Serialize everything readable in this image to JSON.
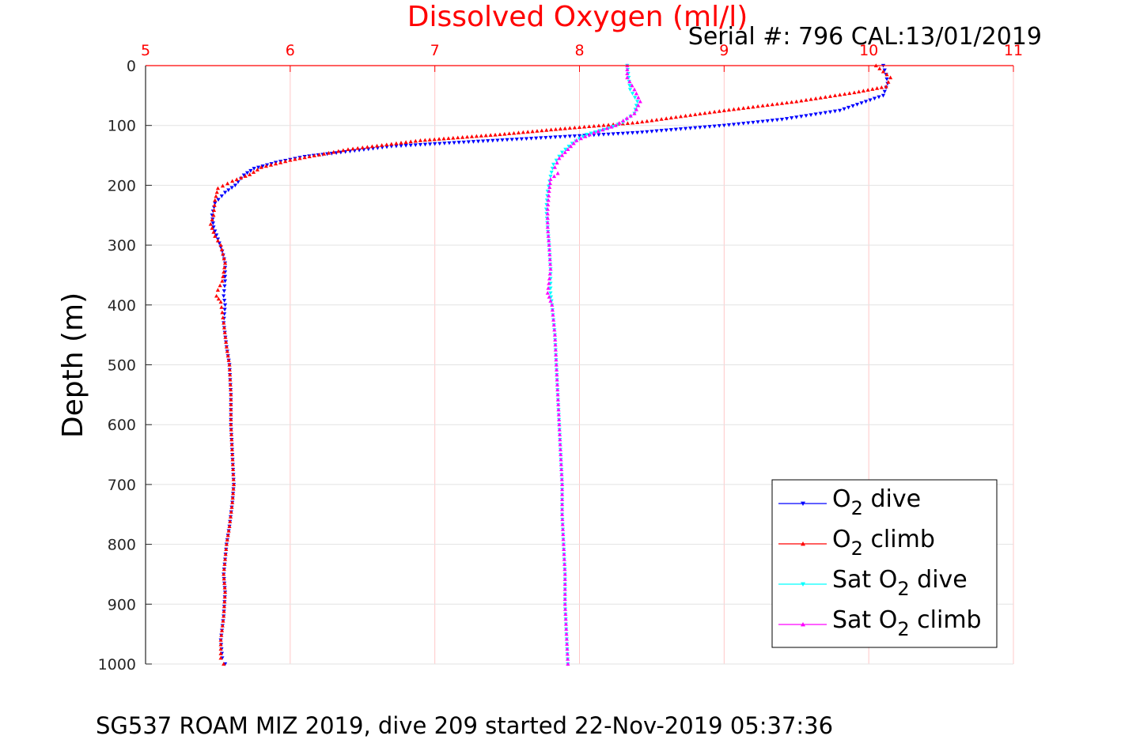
{
  "chart_data": {
    "type": "scatter",
    "title": "Dissolved Oxygen (ml/l)",
    "serial_label": "Serial #: 796  CAL:13/01/2019",
    "ylabel": "Depth (m)",
    "caption": "SG537 ROAM MIZ 2019, dive 209 started 22-Nov-2019 05:37:36",
    "xlim": [
      5,
      11
    ],
    "ylim": [
      0,
      1000
    ],
    "y_reversed": true,
    "x_axis_position": "top",
    "x_ticks": [
      "5",
      "6",
      "7",
      "8",
      "9",
      "10",
      "11"
    ],
    "y_ticks": [
      "0",
      "100",
      "200",
      "300",
      "400",
      "500",
      "600",
      "700",
      "800",
      "900",
      "1000"
    ],
    "grid": true,
    "legend_placement": "bottom-right",
    "colors": {
      "axis_accent": "#ff0000",
      "grid": "#ffc8c8"
    },
    "series": [
      {
        "name": "O2 dive",
        "label_main": "O",
        "label_sub": "2",
        "label_tail": " dive",
        "color": "#0000ff",
        "marker": "triangle-down",
        "points": [
          [
            10.1,
            0
          ],
          [
            10.12,
            15
          ],
          [
            10.13,
            30
          ],
          [
            10.1,
            50
          ],
          [
            9.8,
            75
          ],
          [
            9.4,
            90
          ],
          [
            9.0,
            100
          ],
          [
            8.4,
            112
          ],
          [
            7.8,
            120
          ],
          [
            7.2,
            128
          ],
          [
            6.7,
            135
          ],
          [
            6.35,
            145
          ],
          [
            6.1,
            152
          ],
          [
            5.9,
            162
          ],
          [
            5.75,
            172
          ],
          [
            5.68,
            183
          ],
          [
            5.62,
            200
          ],
          [
            5.55,
            212
          ],
          [
            5.48,
            230
          ],
          [
            5.46,
            250
          ],
          [
            5.47,
            270
          ],
          [
            5.5,
            290
          ],
          [
            5.53,
            310
          ],
          [
            5.55,
            330
          ],
          [
            5.55,
            360
          ],
          [
            5.54,
            385
          ],
          [
            5.55,
            400
          ],
          [
            5.54,
            430
          ],
          [
            5.56,
            470
          ],
          [
            5.58,
            500
          ],
          [
            5.59,
            550
          ],
          [
            5.59,
            600
          ],
          [
            5.6,
            650
          ],
          [
            5.61,
            700
          ],
          [
            5.6,
            730
          ],
          [
            5.58,
            770
          ],
          [
            5.56,
            800
          ],
          [
            5.54,
            850
          ],
          [
            5.55,
            880
          ],
          [
            5.54,
            920
          ],
          [
            5.52,
            960
          ],
          [
            5.53,
            990
          ],
          [
            5.55,
            1000
          ]
        ]
      },
      {
        "name": "O2 climb",
        "label_main": "O",
        "label_sub": "2",
        "label_tail": " climb",
        "color": "#ff0000",
        "marker": "triangle-up",
        "points": [
          [
            10.05,
            0
          ],
          [
            10.15,
            20
          ],
          [
            10.12,
            35
          ],
          [
            9.9,
            45
          ],
          [
            9.5,
            60
          ],
          [
            9.0,
            75
          ],
          [
            8.4,
            95
          ],
          [
            7.9,
            105
          ],
          [
            7.45,
            115
          ],
          [
            6.9,
            125
          ],
          [
            6.4,
            140
          ],
          [
            6.0,
            158
          ],
          [
            5.8,
            170
          ],
          [
            5.72,
            182
          ],
          [
            5.6,
            193
          ],
          [
            5.5,
            205
          ],
          [
            5.48,
            225
          ],
          [
            5.47,
            250
          ],
          [
            5.45,
            265
          ],
          [
            5.48,
            285
          ],
          [
            5.52,
            300
          ],
          [
            5.55,
            330
          ],
          [
            5.53,
            360
          ],
          [
            5.5,
            375
          ],
          [
            5.49,
            385
          ],
          [
            5.52,
            395
          ],
          [
            5.54,
            430
          ],
          [
            5.56,
            470
          ],
          [
            5.58,
            500
          ],
          [
            5.59,
            550
          ],
          [
            5.59,
            600
          ],
          [
            5.6,
            650
          ],
          [
            5.61,
            700
          ],
          [
            5.6,
            730
          ],
          [
            5.58,
            770
          ],
          [
            5.56,
            800
          ],
          [
            5.54,
            850
          ],
          [
            5.55,
            880
          ],
          [
            5.54,
            920
          ],
          [
            5.52,
            960
          ],
          [
            5.52,
            990
          ],
          [
            5.54,
            1000
          ]
        ]
      },
      {
        "name": "Sat O2 dive",
        "label_main": "Sat O",
        "label_sub": "2",
        "label_tail": " dive",
        "color": "#00ffff",
        "marker": "triangle-down",
        "points": [
          [
            8.33,
            0
          ],
          [
            8.34,
            20
          ],
          [
            8.35,
            40
          ],
          [
            8.4,
            60
          ],
          [
            8.38,
            80
          ],
          [
            8.3,
            95
          ],
          [
            8.2,
            105
          ],
          [
            8.05,
            115
          ],
          [
            7.95,
            130
          ],
          [
            7.88,
            145
          ],
          [
            7.82,
            165
          ],
          [
            7.8,
            185
          ],
          [
            7.78,
            210
          ],
          [
            7.77,
            240
          ],
          [
            7.78,
            270
          ],
          [
            7.79,
            300
          ],
          [
            7.8,
            340
          ],
          [
            7.8,
            380
          ],
          [
            7.81,
            400
          ],
          [
            7.83,
            450
          ],
          [
            7.84,
            500
          ],
          [
            7.85,
            550
          ],
          [
            7.86,
            600
          ],
          [
            7.87,
            650
          ],
          [
            7.88,
            700
          ],
          [
            7.88,
            750
          ],
          [
            7.89,
            800
          ],
          [
            7.9,
            850
          ],
          [
            7.9,
            900
          ],
          [
            7.91,
            950
          ],
          [
            7.92,
            1000
          ]
        ]
      },
      {
        "name": "Sat O2 climb",
        "label_main": "Sat O",
        "label_sub": "2",
        "label_tail": " climb",
        "color": "#ff00ff",
        "marker": "triangle-up",
        "points": [
          [
            8.33,
            0
          ],
          [
            8.33,
            20
          ],
          [
            8.38,
            40
          ],
          [
            8.42,
            60
          ],
          [
            8.38,
            80
          ],
          [
            8.25,
            100
          ],
          [
            8.1,
            112
          ],
          [
            7.98,
            125
          ],
          [
            7.92,
            140
          ],
          [
            7.86,
            155
          ],
          [
            7.83,
            170
          ],
          [
            7.85,
            180
          ],
          [
            7.8,
            190
          ],
          [
            7.79,
            210
          ],
          [
            7.78,
            240
          ],
          [
            7.78,
            270
          ],
          [
            7.79,
            300
          ],
          [
            7.8,
            340
          ],
          [
            7.78,
            380
          ],
          [
            7.81,
            400
          ],
          [
            7.83,
            450
          ],
          [
            7.84,
            500
          ],
          [
            7.85,
            550
          ],
          [
            7.86,
            600
          ],
          [
            7.87,
            650
          ],
          [
            7.88,
            700
          ],
          [
            7.88,
            750
          ],
          [
            7.89,
            800
          ],
          [
            7.9,
            850
          ],
          [
            7.9,
            900
          ],
          [
            7.91,
            950
          ],
          [
            7.92,
            1000
          ]
        ]
      }
    ]
  }
}
